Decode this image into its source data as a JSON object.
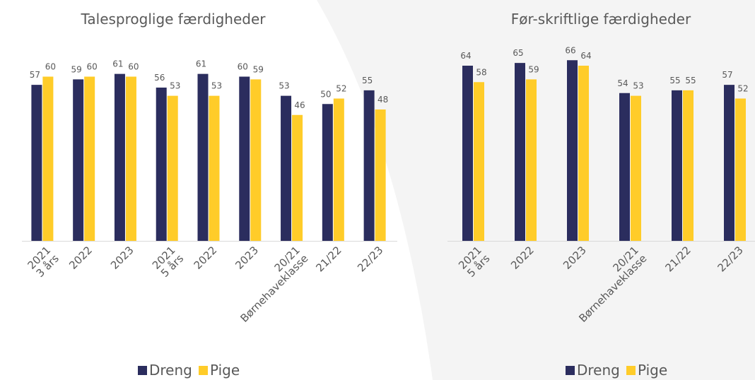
{
  "chart_data": [
    {
      "type": "bar",
      "title": "Talesproglige færdigheder",
      "categories": [
        "2021\n3 års",
        "2022",
        "2023",
        "2021\n5 års",
        "2022",
        "2023",
        "20/21\nBørnehaveklasse",
        "21/22",
        "22/23"
      ],
      "series": [
        {
          "name": "Dreng",
          "color": "#2b2d5e",
          "values": [
            57,
            59,
            61,
            56,
            61,
            60,
            53,
            50,
            55
          ]
        },
        {
          "name": "Pige",
          "color": "#ffcc29",
          "values": [
            60,
            60,
            60,
            53,
            53,
            59,
            46,
            52,
            48
          ]
        }
      ],
      "ylim": [
        0,
        88
      ],
      "legend": "bottom"
    },
    {
      "type": "bar",
      "title": "Før-skriftlige færdigheder",
      "categories": [
        "2021\n5 års",
        "2022",
        "2023",
        "20/21\nBørnehaveklasse",
        "21/22",
        "22/23"
      ],
      "series": [
        {
          "name": "Dreng",
          "color": "#2b2d5e",
          "values": [
            64,
            65,
            66,
            54,
            55,
            57
          ]
        },
        {
          "name": "Pige",
          "color": "#ffcc29",
          "values": [
            58,
            59,
            64,
            53,
            55,
            52
          ]
        }
      ],
      "ylim": [
        0,
        88
      ],
      "legend": "bottom"
    }
  ]
}
